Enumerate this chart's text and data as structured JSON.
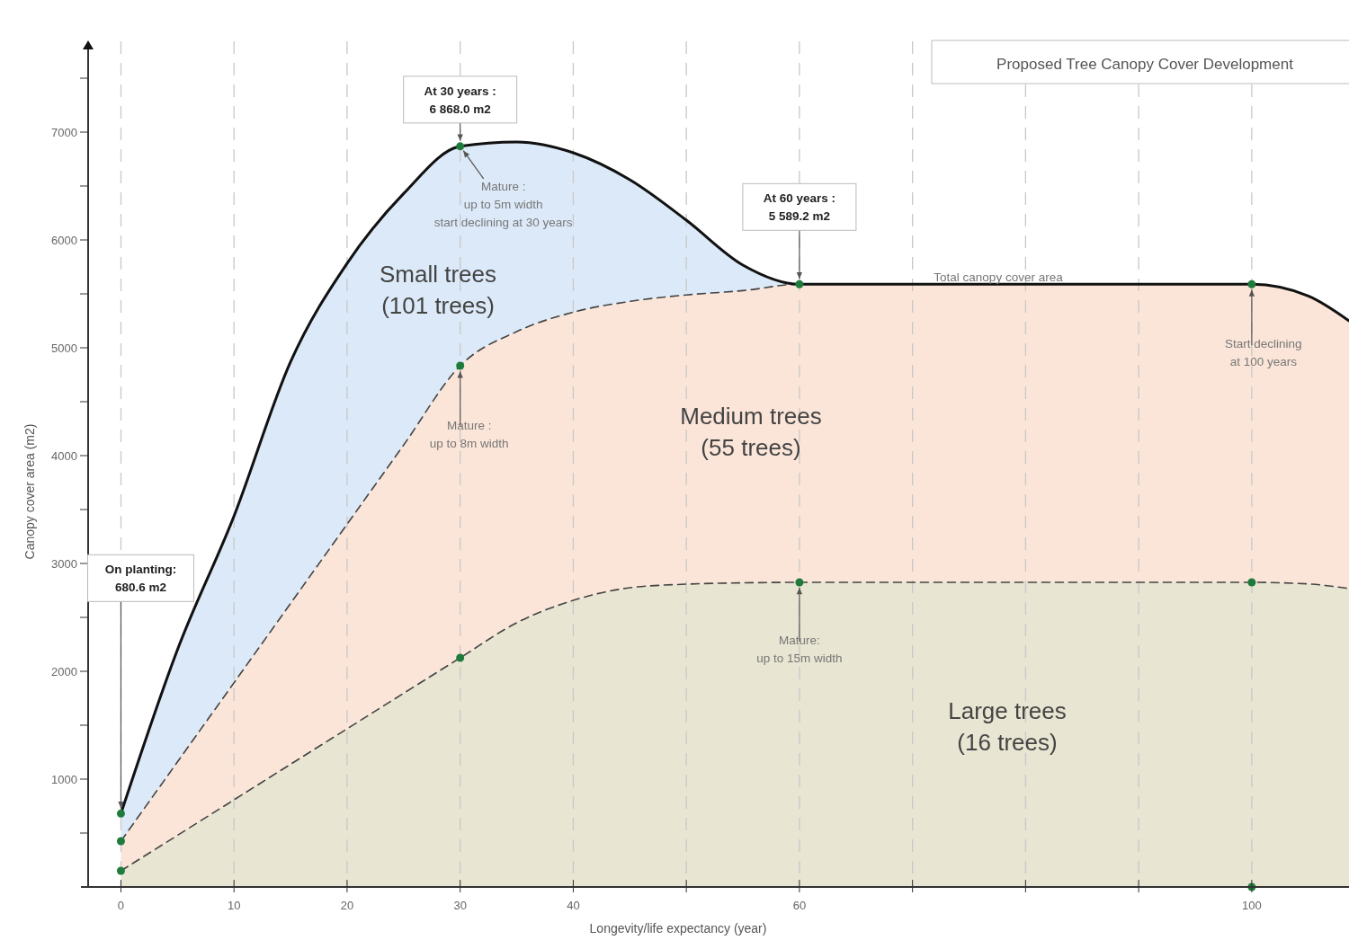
{
  "chart_data": {
    "type": "area",
    "title": "Proposed Tree Canopy Cover Development",
    "xlabel": "Longevity/life expectancy (year)",
    "ylabel": "Canopy cover area (m2)",
    "stacked": true,
    "grid": "x",
    "x": [
      0,
      5,
      10,
      15,
      20,
      25,
      30,
      35,
      40,
      45,
      50,
      55,
      60,
      70,
      80,
      90,
      100,
      105,
      108.6
    ],
    "xlim": [
      -2.9,
      108.6
    ],
    "ylim": [
      0,
      7800
    ],
    "xticks": [
      0,
      10,
      20,
      30,
      40,
      {
        "value": 50,
        "label": null
      },
      60,
      {
        "value": 70,
        "label": null
      },
      {
        "value": 80,
        "label": null
      },
      {
        "value": 90,
        "label": null
      },
      100
    ],
    "yticks": [
      {
        "value": 500,
        "label": null
      },
      1000,
      {
        "value": 1500,
        "label": null
      },
      2000,
      {
        "value": 2500,
        "label": null
      },
      3000,
      {
        "value": 3500,
        "label": null
      },
      4000,
      {
        "value": 4500,
        "label": null
      },
      5000,
      {
        "value": 5500,
        "label": null
      },
      6000,
      {
        "value": 6500,
        "label": null
      },
      7000,
      {
        "value": 7500,
        "label": null
      }
    ],
    "series": [
      {
        "name": "Large trees\n(16 trees)",
        "color": "#e8e5d2",
        "line_style": "dashed",
        "values": [
          150,
          479,
          808,
          1138,
          1467,
          1796,
          2125,
          2450,
          2658,
          2775,
          2808,
          2820,
          2825,
          2825,
          2825,
          2825,
          2825,
          2810,
          2767
        ]
      },
      {
        "name": "Medium trees\n(55 trees)",
        "color": "#fbe5d8",
        "line_style": "dashed",
        "values": [
          275,
          681,
          1086,
          1491,
          1897,
          2302,
          2708,
          2700,
          2672,
          2655,
          2682,
          2710,
          2764.2,
          2764.2,
          2764.2,
          2764.2,
          2764.2,
          2670,
          2483
        ]
      },
      {
        "name": "Small trees\n(101 trees)",
        "color": "#dce9f8",
        "line_style": "solid",
        "values": [
          255.6,
          1040,
          1546,
          2241,
          2419,
          2332,
          2035,
          1758,
          1478,
          1128,
          693,
          237,
          0,
          0,
          0,
          0,
          0,
          0,
          0
        ]
      },
      {
        "type": "scatter",
        "color": "#1e7b3c",
        "marker": "circle",
        "x": [
          0,
          0,
          0,
          30,
          30,
          30,
          60,
          60,
          100,
          100,
          100
        ],
        "values": [
          680.6,
          425,
          150,
          6868,
          4833,
          2125,
          5589.2,
          2825,
          5589.2,
          2825,
          0
        ]
      }
    ],
    "annotations": [
      {
        "text": "At 30 years :\n6 868.0 m2",
        "x": 30,
        "y": 6868
      },
      {
        "text": "At 60 years :\n5 589.2 m2",
        "x": 60,
        "y": 5589.2
      },
      {
        "text": "On planting:\n680.6 m2",
        "x": 0,
        "y": 680.6
      },
      {
        "text": "Mature :\nup to 5m width\nstart declining at 30 years",
        "x": 30,
        "y": 6868
      },
      {
        "text": "Mature :\nup to 8m width",
        "x": 30,
        "y": 4833
      },
      {
        "text": "Mature:\nup to 15m width",
        "x": 60,
        "y": 2825
      },
      {
        "text": "Start declining\nat 100 years",
        "x": 100,
        "y": 5589.2
      },
      "Total canopy cover area"
    ]
  }
}
